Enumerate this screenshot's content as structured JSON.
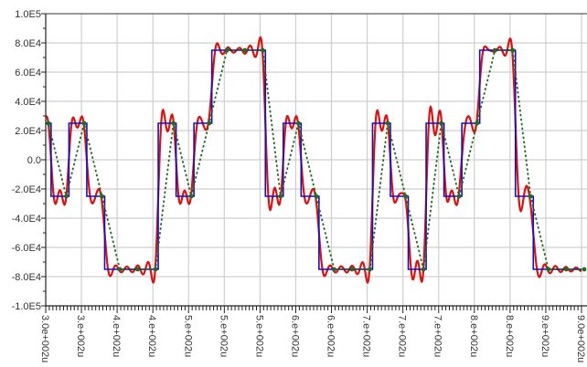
{
  "chart_data": {
    "type": "line",
    "title": "",
    "xlabel": "",
    "ylabel": "",
    "xlim": [
      300,
      900
    ],
    "ylim": [
      -100000,
      100000
    ],
    "grid": true,
    "legend": "none",
    "y_ticks": [
      100000,
      80000,
      60000,
      40000,
      20000,
      0,
      -20000,
      -40000,
      -60000,
      -80000,
      -100000
    ],
    "y_tick_labels": [
      "1.0E5",
      "8.0E4",
      "6.0E4",
      "4.0E4",
      "2.0E4",
      "0.0",
      "-2.0E4",
      "-4.0E4",
      "-6.0E4",
      "-8.0E4",
      "-1.0E5"
    ],
    "x_ticks": [
      300,
      340,
      380,
      420,
      460,
      500,
      540,
      580,
      620,
      660,
      700,
      740,
      780,
      820,
      860,
      900
    ],
    "x_tick_labels": [
      "3.0e+002u",
      "3.e+002u",
      "4.e+002u",
      "4.e+002u",
      "5.e+002u",
      "5.e+002u",
      "5.e+002u",
      "6.e+002u",
      "6.e+002u",
      "7.e+002u",
      "7.e+002u",
      "7.e+002u",
      "8.e+002u",
      "8.e+002u",
      "9.e+002u",
      "9.0e+002u"
    ],
    "series": [
      {
        "style": "step",
        "color": "#1010c8",
        "x": [
          300,
          306,
          326,
          346,
          366,
          386,
          406,
          426,
          446,
          466,
          486,
          506,
          526,
          546,
          566,
          586,
          606,
          626,
          646,
          666,
          686,
          706,
          726,
          746,
          766,
          786,
          806,
          826,
          846,
          866,
          886
        ],
        "y": [
          25000,
          -25000,
          25000,
          -25000,
          -75000,
          -75000,
          -75000,
          25000,
          -25000,
          25000,
          75000,
          75000,
          75000,
          -25000,
          25000,
          -25000,
          -75000,
          -75000,
          -75000,
          25000,
          -25000,
          -75000,
          25000,
          -25000,
          25000,
          75000,
          75000,
          -25000,
          -75000,
          -75000,
          -75000
        ]
      },
      {
        "style": "filtered",
        "color": "#e01010"
      },
      {
        "style": "dotted-with-markers",
        "color": "#1e6e1e",
        "x": [
          303,
          323,
          343,
          363,
          383,
          403,
          423,
          443,
          463,
          483,
          503,
          523,
          543,
          563,
          583,
          603,
          623,
          643,
          663,
          683,
          703,
          723,
          743,
          763,
          783,
          803,
          823,
          843,
          863,
          883,
          903
        ],
        "y": [
          25000,
          -25000,
          25000,
          -25000,
          -75000,
          -75000,
          -75000,
          25000,
          -25000,
          25000,
          75000,
          75000,
          75000,
          -25000,
          25000,
          -25000,
          -75000,
          -75000,
          -75000,
          25000,
          -25000,
          -75000,
          25000,
          -25000,
          25000,
          75000,
          75000,
          -25000,
          -75000,
          -75000,
          -75000
        ]
      }
    ]
  }
}
